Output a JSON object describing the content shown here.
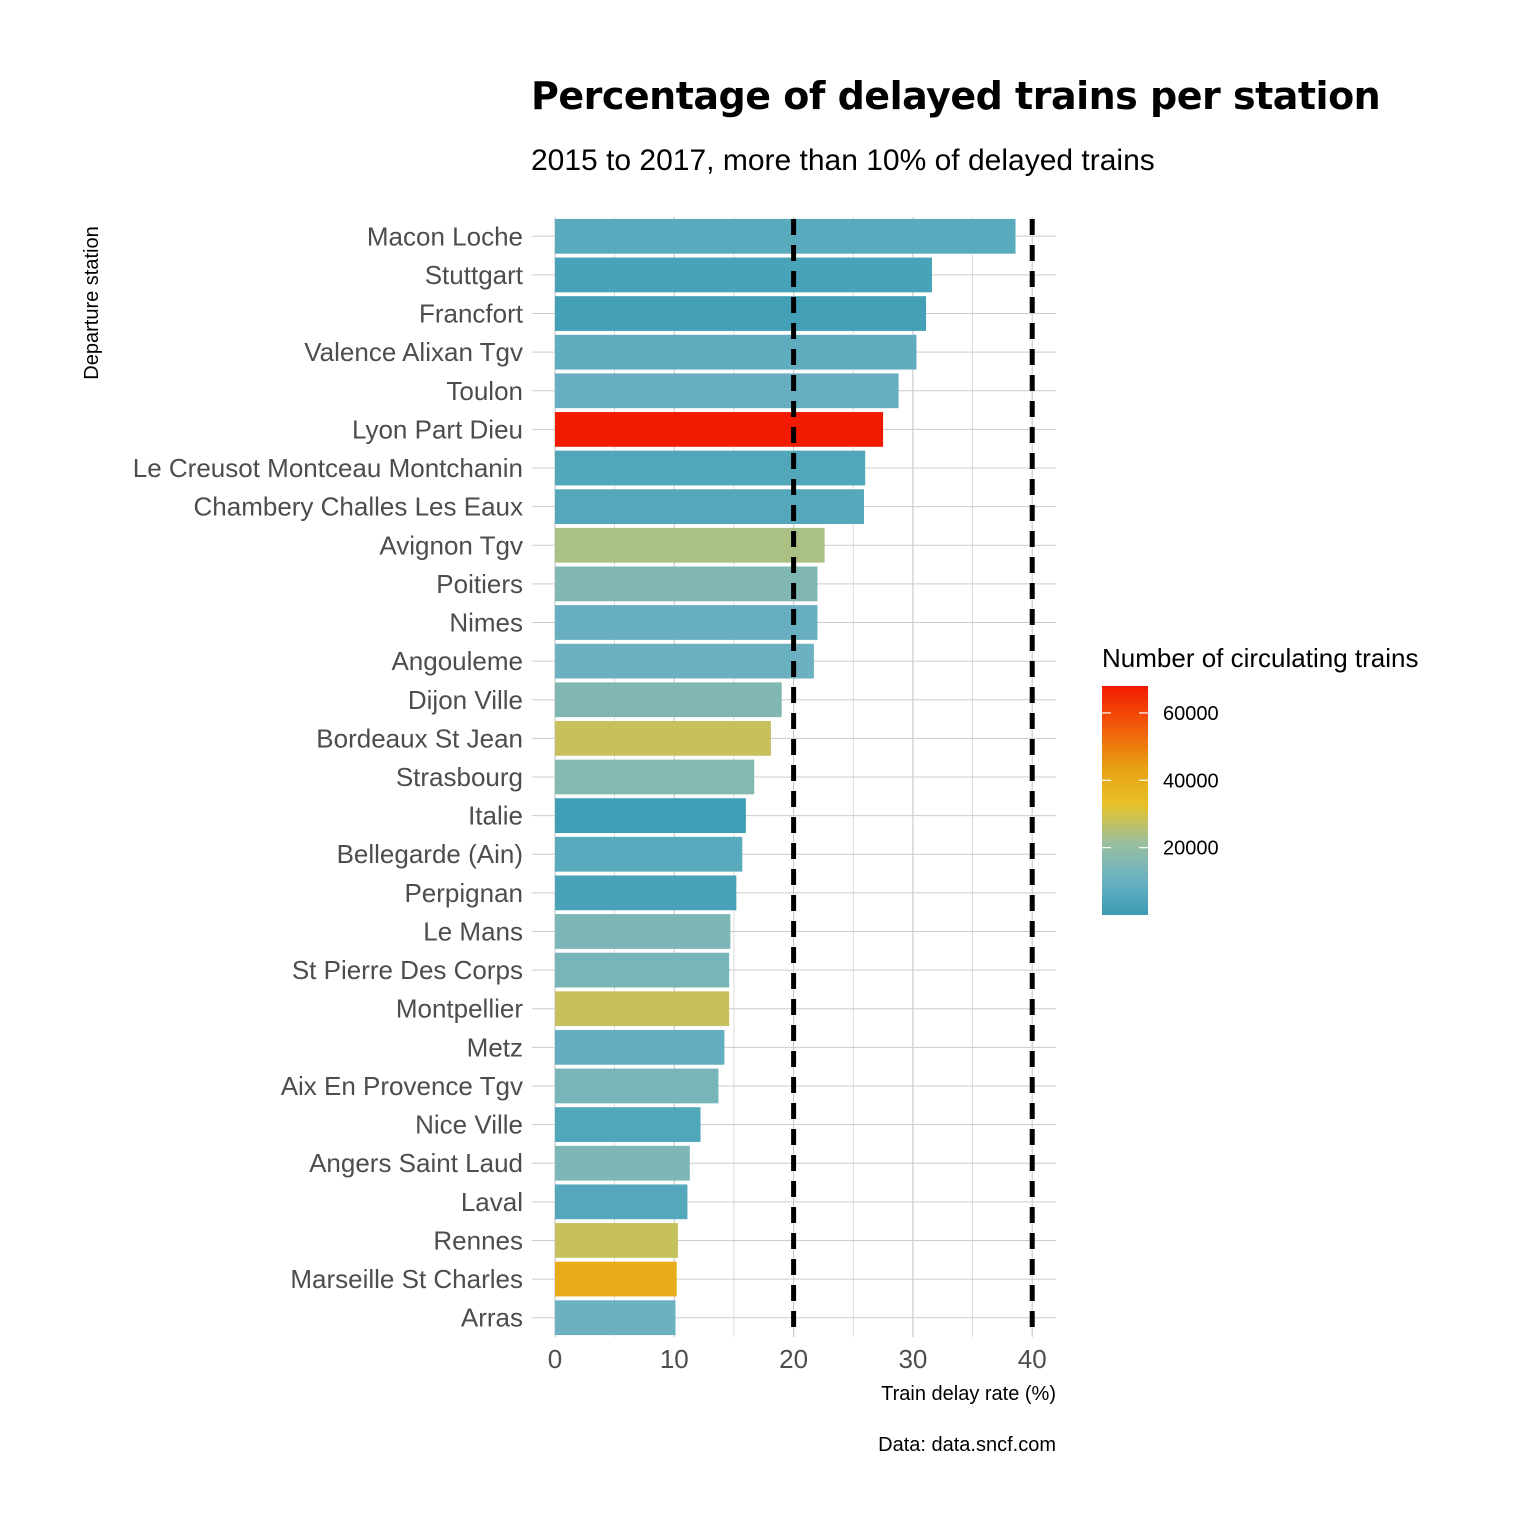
{
  "chart_data": {
    "type": "bar",
    "orientation": "horizontal",
    "title": "Percentage of delayed trains per station",
    "subtitle": "2015 to 2017, more than 10% of delayed trains",
    "xlabel": "Train delay rate (%)",
    "ylabel": "Departure station",
    "caption": "Data: data.sncf.com",
    "xlim": [
      0,
      42
    ],
    "xticks": [
      0,
      10,
      20,
      30,
      40
    ],
    "grid": true,
    "reference_lines": [
      20,
      40
    ],
    "categories": [
      "Macon Loche",
      "Stuttgart",
      "Francfort",
      "Valence Alixan Tgv",
      "Toulon",
      "Lyon Part Dieu",
      "Le Creusot Montceau Montchanin",
      "Chambery Challes Les Eaux",
      "Avignon Tgv",
      "Poitiers",
      "Nimes",
      "Angouleme",
      "Dijon Ville",
      "Bordeaux St Jean",
      "Strasbourg",
      "Italie",
      "Bellegarde (Ain)",
      "Perpignan",
      "Le Mans",
      "St Pierre Des Corps",
      "Montpellier",
      "Metz",
      "Aix En Provence Tgv",
      "Nice Ville",
      "Angers Saint Laud",
      "Laval",
      "Rennes",
      "Marseille St Charles",
      "Arras"
    ],
    "values": [
      38.6,
      31.6,
      31.1,
      30.3,
      28.8,
      27.5,
      26.0,
      25.9,
      22.6,
      22.0,
      22.0,
      21.7,
      19.0,
      18.1,
      16.7,
      16.0,
      15.7,
      15.2,
      14.7,
      14.6,
      14.6,
      14.2,
      13.7,
      12.2,
      11.3,
      11.1,
      10.3,
      10.2,
      10.1
    ],
    "color_values": [
      7000,
      3000,
      2000,
      8000,
      10000,
      68000,
      5000,
      6000,
      25000,
      16000,
      10000,
      11000,
      16000,
      29000,
      17000,
      1000,
      7000,
      3000,
      15000,
      14000,
      29000,
      9000,
      14000,
      5000,
      15000,
      6000,
      29000,
      42000,
      11000
    ],
    "legend": {
      "title": "Number of circulating trains",
      "ticks": [
        20000,
        40000,
        60000
      ],
      "range": [
        0,
        68000
      ],
      "position": "right"
    },
    "colors": {
      "scale": [
        "#3a9cb4",
        "#6db2c2",
        "#9bbf9c",
        "#e8c22a",
        "#e8a112",
        "#f25c0a",
        "#f21a00"
      ],
      "reference_line": "#000000",
      "grid": "#cccccc",
      "tick_text": "#4d4d4d"
    }
  }
}
